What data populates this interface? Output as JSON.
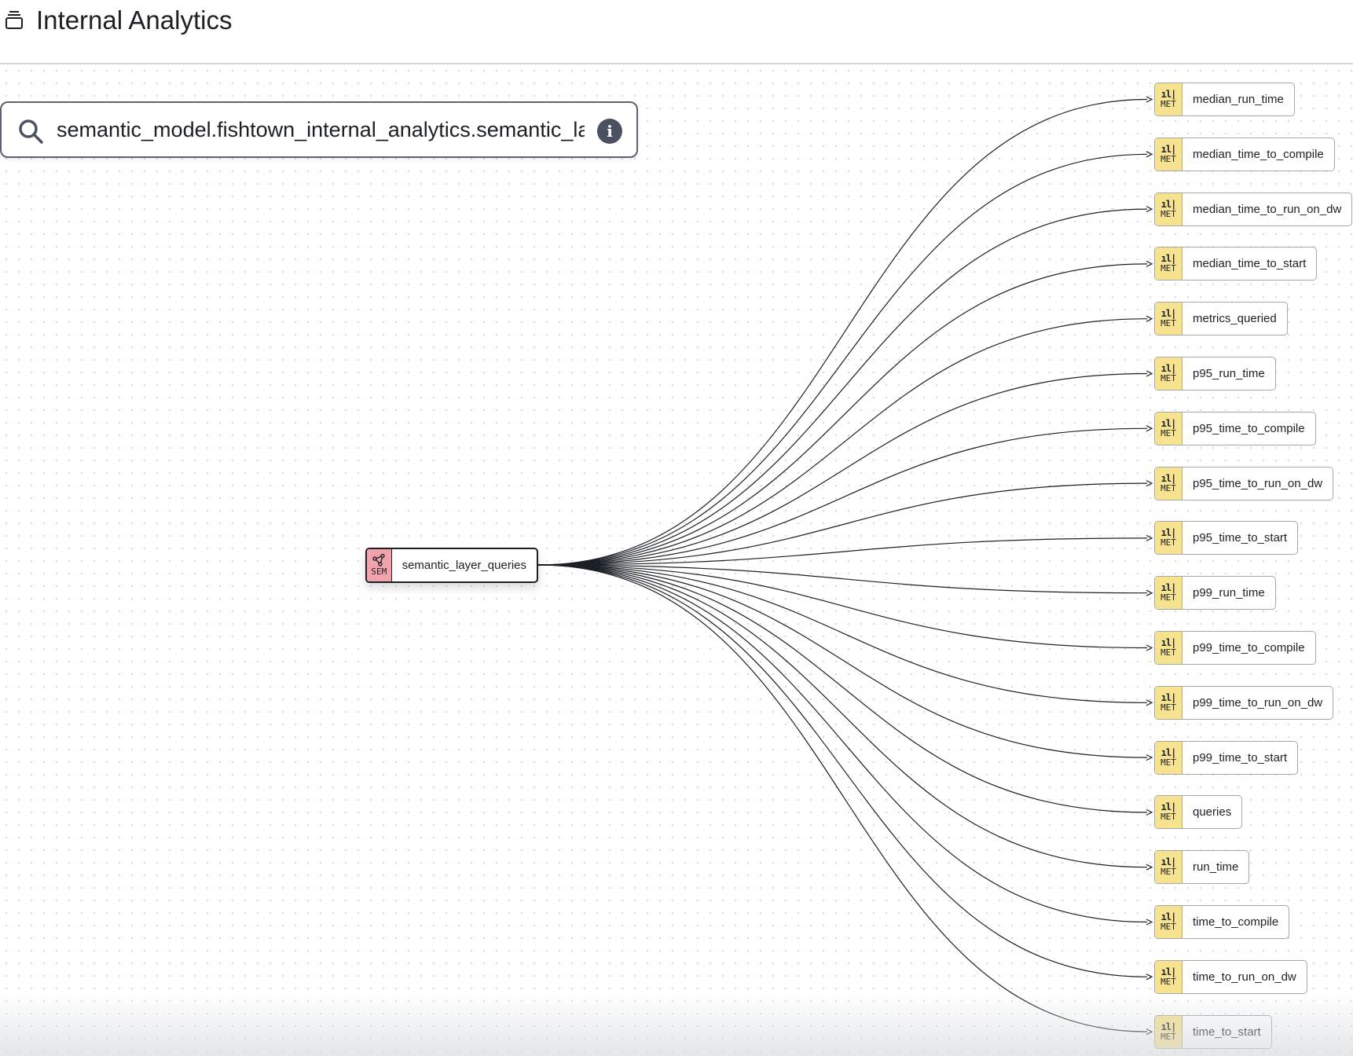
{
  "header": {
    "title": "Internal Analytics",
    "icon": "stack-icon"
  },
  "search": {
    "value": "semantic_model.fishtown_internal_analytics.semantic_layer_queries+",
    "info_icon": "i"
  },
  "source_node": {
    "type": "SEM",
    "label": "semantic_layer_queries",
    "color": "#f2a2ab"
  },
  "metric_badge": {
    "type": "MET",
    "glyph": "ıl|",
    "color": "#f7e38f"
  },
  "metrics": [
    "median_run_time",
    "median_time_to_compile",
    "median_time_to_run_on_dw",
    "median_time_to_start",
    "metrics_queried",
    "p95_run_time",
    "p95_time_to_compile",
    "p95_time_to_run_on_dw",
    "p95_time_to_start",
    "p99_run_time",
    "p99_time_to_compile",
    "p99_time_to_run_on_dw",
    "p99_time_to_start",
    "queries",
    "run_time",
    "time_to_compile",
    "time_to_run_on_dw",
    "time_to_start"
  ]
}
